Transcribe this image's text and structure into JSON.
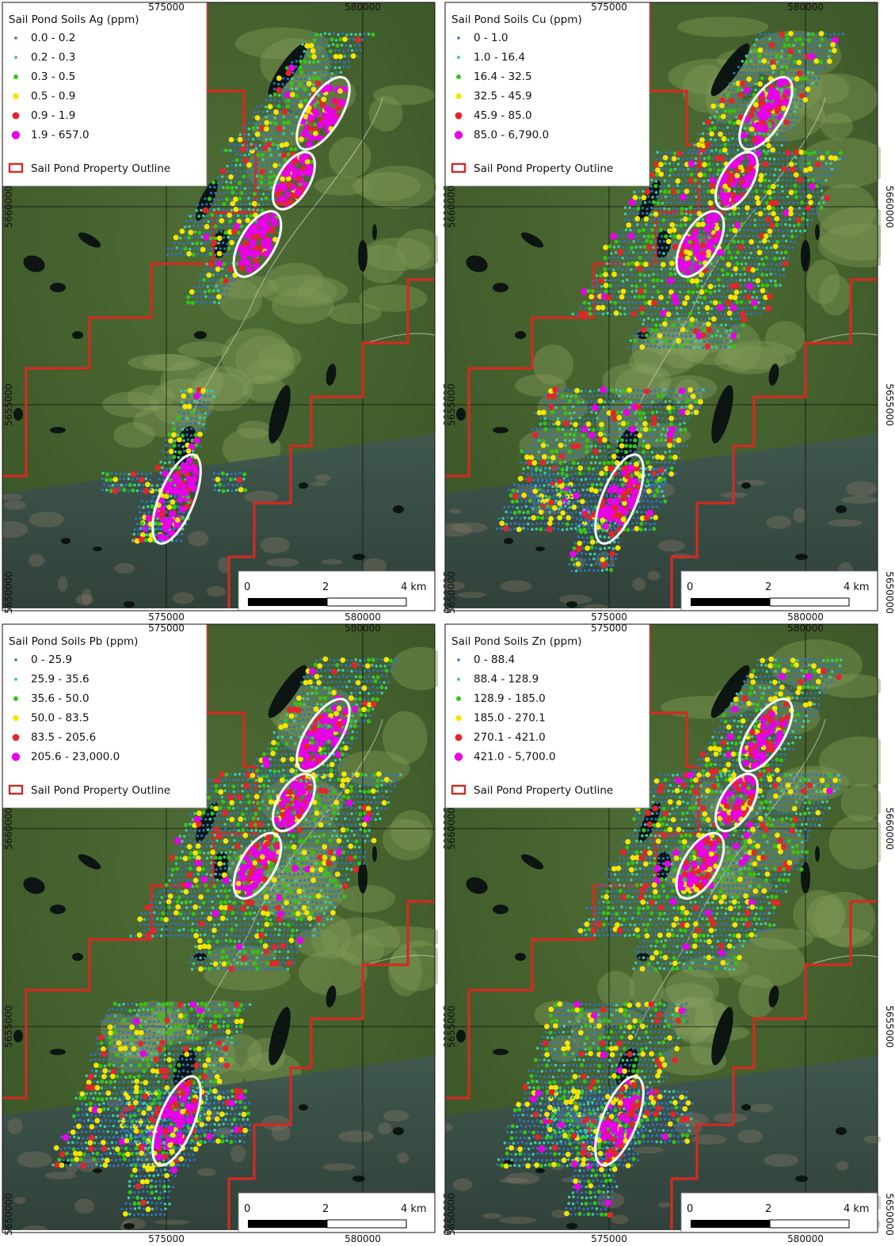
{
  "figure": {
    "panels": [
      {
        "element": "Ag",
        "legend_title": "Sail Pond Soils Ag (ppm)",
        "classes": [
          "0.0 - 0.2",
          "0.2 - 0.3",
          "0.3 - 0.5",
          "0.5 - 0.9",
          "0.9 - 1.9",
          "1.9 - 657.0"
        ],
        "outline_label": "Sail Pond Property Outline"
      },
      {
        "element": "Cu",
        "legend_title": "Sail Pond Soils Cu (ppm)",
        "classes": [
          "0 - 1.0",
          "1.0 - 16.4",
          "16.4 - 32.5",
          "32.5 - 45.9",
          "45.9 - 85.0",
          "85.0 - 6,790.0"
        ],
        "outline_label": "Sail Pond Property Outline"
      },
      {
        "element": "Pb",
        "legend_title": "Sail Pond Soils Pb (ppm)",
        "classes": [
          "0 - 25.9",
          "25.9 - 35.6",
          "35.6 - 50.0",
          "50.0 - 83.5",
          "83.5 - 205.6",
          "205.6 - 23,000.0"
        ],
        "outline_label": "Sail Pond Property Outline"
      },
      {
        "element": "Zn",
        "legend_title": "Sail Pond Soils Zn (ppm)",
        "classes": [
          "0 - 88.4",
          "88.4 - 128.9",
          "128.9 - 185.0",
          "185.0 - 270.1",
          "270.1 - 421.0",
          "421.0 - 5,700.0"
        ],
        "outline_label": "Sail Pond Property Outline"
      }
    ],
    "class_colors": [
      "#2f74c0",
      "#3cc9a8",
      "#33c419",
      "#f5e600",
      "#e3262c",
      "#e800e8"
    ],
    "outline_color": "#d42a22",
    "target_ellipse_color": "#ffffff",
    "grid": {
      "eastings": [
        "575000",
        "580000"
      ],
      "northings": [
        "5660000",
        "5655000",
        "5650000"
      ]
    },
    "scale_bar": {
      "labels": [
        "0",
        "2",
        "4 km"
      ]
    }
  }
}
